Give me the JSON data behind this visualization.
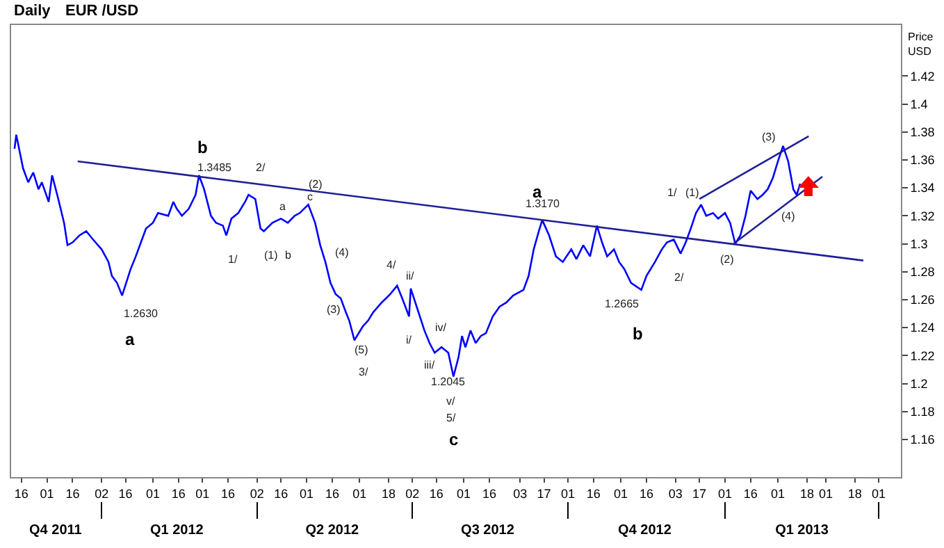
{
  "chart_data": {
    "type": "line",
    "title": "Daily",
    "subtitle": "EUR /USD",
    "ylabel": "Price\nUSD",
    "series": [
      {
        "color": "#0000ff",
        "x": [
          "2011-11-12",
          "2011-11-13",
          "2011-11-17",
          "2011-11-20",
          "2011-11-23",
          "2011-11-26",
          "2011-11-28",
          "2011-12-02",
          "2011-12-04",
          "2011-12-07",
          "2011-12-11",
          "2011-12-13",
          "2011-12-16",
          "2011-12-20",
          "2011-12-24",
          "2011-12-28",
          "2012-01-02",
          "2012-01-06",
          "2012-01-08",
          "2012-01-11",
          "2012-01-14",
          "2012-01-19",
          "2012-01-22",
          "2012-01-25",
          "2012-01-28",
          "2012-02-01",
          "2012-02-04",
          "2012-02-10",
          "2012-02-13",
          "2012-02-15",
          "2012-02-18",
          "2012-02-22",
          "2012-02-26",
          "2012-02-28",
          "2012-03-02",
          "2012-03-06",
          "2012-03-09",
          "2012-03-13",
          "2012-03-15",
          "2012-03-18",
          "2012-03-22",
          "2012-03-26",
          "2012-03-28",
          "2012-04-01",
          "2012-04-04",
          "2012-04-06",
          "2012-04-11",
          "2012-04-16",
          "2012-04-20",
          "2012-04-24",
          "2012-04-27",
          "2012-05-02",
          "2012-05-06",
          "2012-05-09",
          "2012-05-12",
          "2012-05-15",
          "2012-05-18",
          "2012-05-21",
          "2012-05-24",
          "2012-05-26",
          "2012-05-29",
          "2012-06-03",
          "2012-06-06",
          "2012-06-09",
          "2012-06-14",
          "2012-06-19",
          "2012-06-23",
          "2012-06-26",
          "2012-06-30",
          "2012-07-01",
          "2012-07-05",
          "2012-07-09",
          "2012-07-12",
          "2012-07-15",
          "2012-07-19",
          "2012-07-23",
          "2012-07-26",
          "2012-07-29",
          "2012-07-31",
          "2012-08-02",
          "2012-08-05",
          "2012-08-08",
          "2012-08-11",
          "2012-08-14",
          "2012-08-18",
          "2012-08-22",
          "2012-08-26",
          "2012-08-30",
          "2012-09-05",
          "2012-09-08",
          "2012-09-11",
          "2012-09-14",
          "2012-09-16",
          "2012-09-20",
          "2012-09-24",
          "2012-09-28",
          "2012-10-03",
          "2012-10-06",
          "2012-10-10",
          "2012-10-14",
          "2012-10-18",
          "2012-10-21",
          "2012-10-24",
          "2012-10-28",
          "2012-10-31",
          "2012-11-03",
          "2012-11-07",
          "2012-11-13",
          "2012-11-16",
          "2012-11-21",
          "2012-11-25",
          "2012-11-28",
          "2012-12-02",
          "2012-12-06",
          "2012-12-09",
          "2012-12-12",
          "2012-12-15",
          "2012-12-18",
          "2012-12-21",
          "2012-12-25",
          "2012-12-28",
          "2013-01-01",
          "2013-01-04",
          "2013-01-07",
          "2013-01-10",
          "2013-01-13",
          "2013-01-16",
          "2013-01-20",
          "2013-01-23",
          "2013-01-26",
          "2013-01-29",
          "2013-02-01",
          "2013-02-04",
          "2013-02-07",
          "2013-02-10",
          "2013-02-12",
          "2013-02-14"
        ],
        "values": [
          1.368,
          1.378,
          1.354,
          1.344,
          1.351,
          1.339,
          1.344,
          1.33,
          1.349,
          1.335,
          1.315,
          1.299,
          1.301,
          1.306,
          1.309,
          1.303,
          1.296,
          1.287,
          1.277,
          1.272,
          1.263,
          1.282,
          1.291,
          1.301,
          1.311,
          1.315,
          1.322,
          1.32,
          1.33,
          1.325,
          1.32,
          1.325,
          1.335,
          1.349,
          1.339,
          1.32,
          1.315,
          1.313,
          1.306,
          1.318,
          1.322,
          1.33,
          1.335,
          1.332,
          1.311,
          1.309,
          1.315,
          1.318,
          1.315,
          1.32,
          1.322,
          1.328,
          1.315,
          1.299,
          1.287,
          1.272,
          1.264,
          1.261,
          1.251,
          1.245,
          1.231,
          1.241,
          1.245,
          1.251,
          1.258,
          1.264,
          1.27,
          1.261,
          1.248,
          1.268,
          1.253,
          1.238,
          1.229,
          1.222,
          1.226,
          1.222,
          1.205,
          1.219,
          1.234,
          1.226,
          1.238,
          1.229,
          1.234,
          1.236,
          1.248,
          1.255,
          1.258,
          1.263,
          1.267,
          1.277,
          1.296,
          1.309,
          1.317,
          1.306,
          1.291,
          1.287,
          1.296,
          1.289,
          1.299,
          1.291,
          1.313,
          1.301,
          1.291,
          1.296,
          1.287,
          1.282,
          1.272,
          1.267,
          1.277,
          1.287,
          1.296,
          1.301,
          1.303,
          1.293,
          1.301,
          1.311,
          1.322,
          1.328,
          1.32,
          1.322,
          1.318,
          1.322,
          1.315,
          1.3,
          1.306,
          1.32,
          1.338,
          1.332,
          1.335,
          1.339,
          1.347,
          1.359,
          1.37,
          1.359,
          1.339,
          1.335,
          1.343
        ]
      },
      {
        "type": "line",
        "color": "#1f1f99",
        "x": [
          "2011-12-19",
          "2013-03-23"
        ],
        "values": [
          1.359,
          1.288
        ]
      },
      {
        "type": "line",
        "color": "#1f1f99",
        "x": [
          "2012-12-17",
          "2013-02-19"
        ],
        "values": [
          1.332,
          1.377
        ]
      },
      {
        "type": "line",
        "color": "#1f1f99",
        "x": [
          "2013-01-06",
          "2013-02-27"
        ],
        "values": [
          1.3,
          1.348
        ]
      }
    ],
    "annotations": [
      "b",
      "1.3485",
      "a",
      "1.2630",
      "1/",
      "2/",
      "(1)",
      "a",
      "b",
      "(2)",
      "c",
      "(4)",
      "(3)",
      "(5)",
      "3/",
      "4/",
      "ii/",
      "i/",
      "iii/",
      "iv/",
      "v/",
      "1.2045",
      "5/",
      "c",
      "a",
      "1.3170",
      "1.2665",
      "b",
      "1/",
      "2/",
      "(1)",
      "(2)",
      "(3)",
      "(4)"
    ],
    "xlim": [
      "2011-11-10",
      "2013-04-14"
    ],
    "xticks": [
      {
        "value": "2011-11-16",
        "label": "16"
      },
      {
        "value": "2011-12-01",
        "label": "01"
      },
      {
        "value": "2011-12-16",
        "label": "16"
      },
      {
        "value": "2012-01-02",
        "label": "02"
      },
      {
        "value": "2012-01-16",
        "label": "16"
      },
      {
        "value": "2012-02-01",
        "label": "01"
      },
      {
        "value": "2012-02-16",
        "label": "16"
      },
      {
        "value": "2012-03-01",
        "label": "01"
      },
      {
        "value": "2012-03-16",
        "label": "16"
      },
      {
        "value": "2012-04-02",
        "label": "02"
      },
      {
        "value": "2012-04-16",
        "label": "16"
      },
      {
        "value": "2012-05-01",
        "label": "01"
      },
      {
        "value": "2012-05-16",
        "label": "16"
      },
      {
        "value": "2012-06-01",
        "label": "01"
      },
      {
        "value": "2012-06-18",
        "label": "18"
      },
      {
        "value": "2012-07-02",
        "label": "02"
      },
      {
        "value": "2012-07-16",
        "label": "16"
      },
      {
        "value": "2012-08-01",
        "label": "01"
      },
      {
        "value": "2012-08-16",
        "label": "16"
      },
      {
        "value": "2012-09-03",
        "label": "03"
      },
      {
        "value": "2012-09-17",
        "label": "17"
      },
      {
        "value": "2012-10-01",
        "label": "01"
      },
      {
        "value": "2012-10-16",
        "label": "16"
      },
      {
        "value": "2012-11-01",
        "label": "01"
      },
      {
        "value": "2012-11-16",
        "label": "16"
      },
      {
        "value": "2012-12-03",
        "label": "03"
      },
      {
        "value": "2012-12-17",
        "label": "17"
      },
      {
        "value": "2013-01-01",
        "label": "01"
      },
      {
        "value": "2013-01-16",
        "label": "16"
      },
      {
        "value": "2013-02-01",
        "label": "01"
      },
      {
        "value": "2013-02-18",
        "label": "18"
      },
      {
        "value": "2013-03-01",
        "label": "01"
      },
      {
        "value": "2013-03-18",
        "label": "18"
      },
      {
        "value": "2013-04-01",
        "label": "01"
      }
    ],
    "x2lim": [
      "2011-11-10",
      "2013-04-14"
    ],
    "x2ticks": [
      {
        "value": "2011-12-06",
        "label": "Q4 2011"
      },
      {
        "value": "2012-01-02",
        "label": null
      },
      {
        "value": "2012-02-15",
        "label": "Q1 2012"
      },
      {
        "value": "2012-04-02",
        "label": null
      },
      {
        "value": "2012-05-16",
        "label": "Q2 2012"
      },
      {
        "value": "2012-07-02",
        "label": null
      },
      {
        "value": "2012-08-15",
        "label": "Q3 2012"
      },
      {
        "value": "2012-10-01",
        "label": null
      },
      {
        "value": "2012-11-15",
        "label": "Q4 2012"
      },
      {
        "value": "2013-01-01",
        "label": null
      },
      {
        "value": "2013-02-15",
        "label": "Q1 2013"
      },
      {
        "value": "2013-04-01",
        "label": null
      }
    ],
    "ylim": [
      1.133,
      1.4565
    ],
    "yticks": [
      1.16,
      1.18,
      1.2,
      1.22,
      1.24,
      1.26,
      1.28,
      1.3,
      1.32,
      1.34,
      1.36,
      1.38,
      1.4,
      1.42
    ],
    "grid": false,
    "marker": "none",
    "line_style": "solid"
  }
}
